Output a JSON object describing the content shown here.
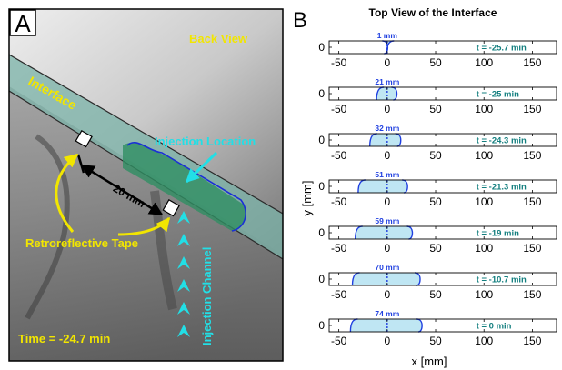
{
  "panel_a": {
    "label": "A",
    "back_view": "Back View",
    "interface": "Interface",
    "injection_location": "Injection Location",
    "distance": "20 mm",
    "retroreflective_tape": "Retroreflective Tape",
    "injection_channel": "Injection Channel",
    "time": "Time = -24.7  min",
    "colors": {
      "yellow": "#f2e600",
      "cyan": "#22dfe6",
      "interface_fill": "#7bb3a8",
      "injection": "#2f8f63",
      "front": "#1a2fd6"
    }
  },
  "panel_b": {
    "label": "B",
    "title": "Top View of the Interface",
    "ylabel": "y  [mm]",
    "xlabel": "x  [mm]",
    "xticks": [
      "-50",
      "0",
      "50",
      "100",
      "150"
    ],
    "ytick": "0",
    "colors": {
      "fill": "#bfe6f3",
      "front": "#1f3fe0",
      "size_label": "#1f3fe0",
      "time_label": "#137f7f",
      "dash": "#1f3fe0"
    }
  },
  "chart_data": {
    "type": "line",
    "title": "Top View of the Interface",
    "xlabel": "x  [mm]",
    "ylabel": "y  [mm]",
    "xlim": [
      -60,
      175
    ],
    "xticks": [
      -50,
      0,
      50,
      100,
      150
    ],
    "snapshots": [
      {
        "size": "1 mm",
        "time": "t = -25.7  min",
        "left": -0.5,
        "right": 0.5
      },
      {
        "size": "21 mm",
        "time": "t = -25  min",
        "left": -11,
        "right": 10
      },
      {
        "size": "32 mm",
        "time": "t = -24.3  min",
        "left": -18,
        "right": 14
      },
      {
        "size": "51 mm",
        "time": "t = -21.3  min",
        "left": -30,
        "right": 21
      },
      {
        "size": "59 mm",
        "time": "t = -19  min",
        "left": -33,
        "right": 26
      },
      {
        "size": "70 mm",
        "time": "t = -10.7  min",
        "left": -36,
        "right": 34
      },
      {
        "size": "74 mm",
        "time": "t = 0  min",
        "left": -38,
        "right": 36
      }
    ]
  }
}
